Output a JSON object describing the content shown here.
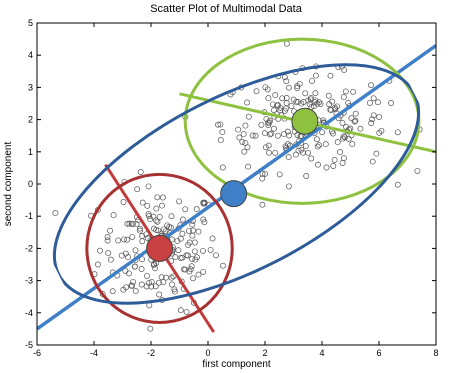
{
  "chart_data": {
    "type": "scatter",
    "title": "Scatter Plot of Multimodal Data",
    "xlabel": "first component",
    "ylabel": "second component",
    "xlim": [
      -6,
      8
    ],
    "ylim": [
      -5,
      5
    ],
    "xticks": [
      -6,
      -4,
      -2,
      0,
      2,
      4,
      6,
      8
    ],
    "yticks": [
      -5,
      -4,
      -3,
      -2,
      -1,
      0,
      1,
      2,
      3,
      4,
      5
    ],
    "grid": false,
    "clusters": [
      {
        "center": [
          -1.7,
          -2.0
        ],
        "spread": [
          1.05,
          0.95
        ],
        "count": 180,
        "color": "#b33a3a"
      },
      {
        "center": [
          3.4,
          1.9
        ],
        "spread": [
          1.45,
          0.75
        ],
        "count": 220,
        "color": "#8dc13f"
      }
    ],
    "overall_center": [
      0.9,
      -0.3
    ],
    "overall_color": "#3f7fc8",
    "principal_axis": {
      "x": [
        -6,
        8
      ],
      "y": [
        -4.5,
        4.3
      ],
      "color": "#3f7fc8"
    },
    "ellipses": [
      {
        "center": [
          -1.7,
          -2.0
        ],
        "semi_axes": [
          2.55,
          2.3
        ],
        "angle_deg": 0,
        "color": "#a83232"
      },
      {
        "center": [
          3.3,
          1.95
        ],
        "semi_axes": [
          4.1,
          2.55
        ],
        "angle_deg": 0,
        "color": "#8dc13f"
      },
      {
        "center": [
          1.0,
          0.0
        ],
        "semi_axes": [
          7.0,
          2.7
        ],
        "angle_deg": 27,
        "color": "#2e5c99"
      }
    ],
    "cluster_axes": [
      {
        "from": [
          -3.6,
          0.6
        ],
        "to": [
          0.2,
          -4.6
        ],
        "color": "#c23b3b"
      },
      {
        "from": [
          -1.0,
          2.8
        ],
        "to": [
          8.0,
          1.0
        ],
        "color": "#8dc13f"
      }
    ],
    "markers": [
      {
        "name": "overall-mean",
        "x": 0.9,
        "y": -0.3,
        "color": "#3f7fc8"
      },
      {
        "name": "cluster-1-mean",
        "x": -1.7,
        "y": -2.0,
        "color": "#c84040"
      },
      {
        "name": "cluster-2-mean",
        "x": 3.4,
        "y": 1.95,
        "color": "#8dc13f"
      }
    ]
  }
}
